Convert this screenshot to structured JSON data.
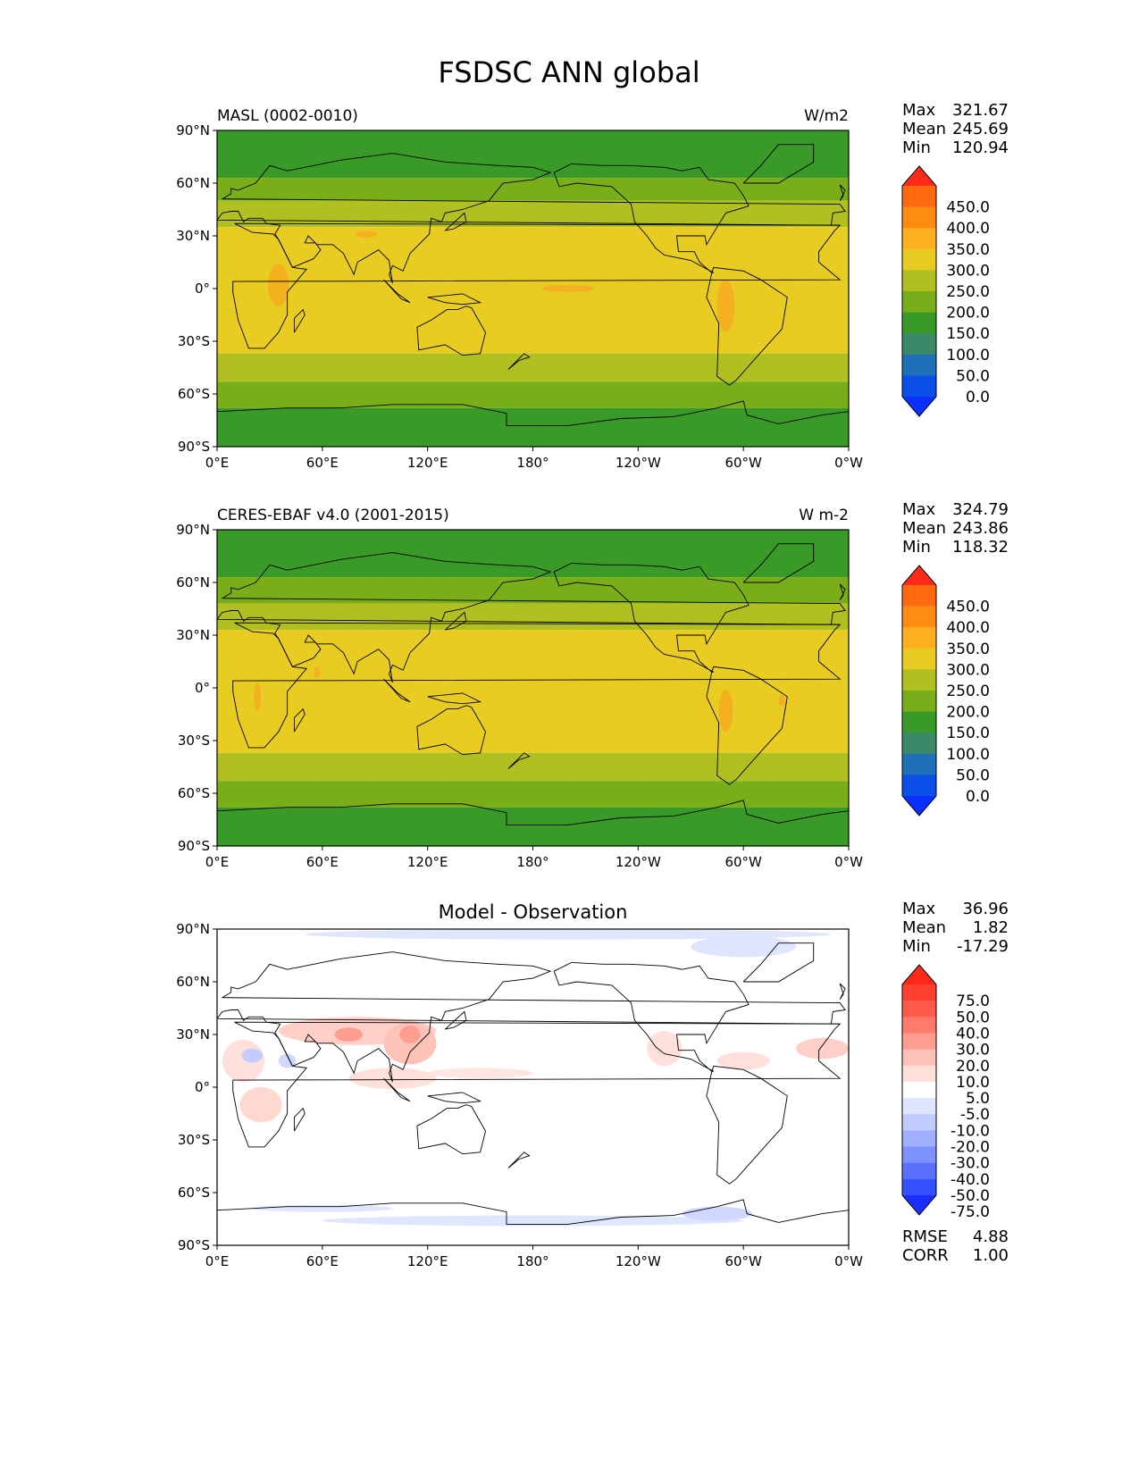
{
  "figure": {
    "title": "FSDSC ANN global",
    "lat_ticks": [
      "90°N",
      "60°N",
      "30°N",
      "0°",
      "30°S",
      "60°S",
      "90°S"
    ],
    "lon_ticks": [
      "0°E",
      "60°E",
      "120°E",
      "180°",
      "120°W",
      "60°W",
      "0°W"
    ]
  },
  "panels": [
    {
      "id": "model",
      "left_title": "MASL (0002-0010)",
      "center_title": "",
      "right_title": "W/m2",
      "stats": [
        {
          "label": "Max",
          "value": "321.67"
        },
        {
          "label": "Mean",
          "value": "245.69"
        },
        {
          "label": "Min",
          "value": "120.94"
        }
      ],
      "colorbar": {
        "labels": [
          "450.0",
          "400.0",
          "350.0",
          "300.0",
          "250.0",
          "200.0",
          "150.0",
          "100.0",
          "50.0",
          "0.0"
        ],
        "colors": [
          "#ff2a1a",
          "#ff6a10",
          "#ff8c10",
          "#ffb020",
          "#e8cc22",
          "#b0c020",
          "#7aae18",
          "#3a9a28",
          "#3a8a6a",
          "#1e70b8",
          "#0a50e8",
          "#0a30ff"
        ]
      },
      "field": {
        "bands": [
          {
            "lat_top": 90,
            "lat_bottom": 63,
            "color": "#3a9a28"
          },
          {
            "lat_top": 63,
            "lat_bottom": 50,
            "color": "#7aae18"
          },
          {
            "lat_top": 50,
            "lat_bottom": 35,
            "color": "#b0c020"
          },
          {
            "lat_top": 35,
            "lat_bottom": -37,
            "color": "#e8cc22"
          },
          {
            "lat_top": -37,
            "lat_bottom": -53,
            "color": "#b0c020"
          },
          {
            "lat_top": -53,
            "lat_bottom": -68,
            "color": "#7aae18"
          },
          {
            "lat_top": -68,
            "lat_bottom": -90,
            "color": "#3a9a28"
          }
        ],
        "patches": [
          {
            "lon": 35,
            "lat": 2,
            "rlon": 6,
            "rlat": 12,
            "color": "#f5b020"
          },
          {
            "lon": 200,
            "lat": 0,
            "rlon": 15,
            "rlat": 2,
            "color": "#f5b020"
          },
          {
            "lon": 290,
            "lat": -10,
            "rlon": 5,
            "rlat": 15,
            "color": "#f5b020"
          },
          {
            "lon": 85,
            "lat": 31,
            "rlon": 6,
            "rlat": 2,
            "color": "#f5b020"
          }
        ]
      }
    },
    {
      "id": "obs",
      "left_title": "CERES-EBAF v4.0 (2001-2015)",
      "center_title": "",
      "right_title": "W m-2",
      "stats": [
        {
          "label": "Max",
          "value": "324.79"
        },
        {
          "label": "Mean",
          "value": "243.86"
        },
        {
          "label": "Min",
          "value": "118.32"
        }
      ],
      "colorbar": {
        "labels": [
          "450.0",
          "400.0",
          "350.0",
          "300.0",
          "250.0",
          "200.0",
          "150.0",
          "100.0",
          "50.0",
          "0.0"
        ],
        "colors": [
          "#ff2a1a",
          "#ff6a10",
          "#ff8c10",
          "#ffb020",
          "#e8cc22",
          "#b0c020",
          "#7aae18",
          "#3a9a28",
          "#3a8a6a",
          "#1e70b8",
          "#0a50e8",
          "#0a30ff"
        ]
      },
      "field": {
        "bands": [
          {
            "lat_top": 90,
            "lat_bottom": 63,
            "color": "#3a9a28"
          },
          {
            "lat_top": 63,
            "lat_bottom": 48,
            "color": "#7aae18"
          },
          {
            "lat_top": 48,
            "lat_bottom": 33,
            "color": "#b0c020"
          },
          {
            "lat_top": 33,
            "lat_bottom": -37,
            "color": "#e8cc22"
          },
          {
            "lat_top": -37,
            "lat_bottom": -53,
            "color": "#b0c020"
          },
          {
            "lat_top": -53,
            "lat_bottom": -68,
            "color": "#7aae18"
          },
          {
            "lat_top": -68,
            "lat_bottom": -90,
            "color": "#3a9a28"
          }
        ],
        "patches": [
          {
            "lon": 23,
            "lat": -5,
            "rlon": 2,
            "rlat": 8,
            "color": "#f5b020"
          },
          {
            "lon": 290,
            "lat": -13,
            "rlon": 4,
            "rlat": 12,
            "color": "#f5b020"
          },
          {
            "lon": 322,
            "lat": -7,
            "rlon": 2,
            "rlat": 3,
            "color": "#f5b020"
          },
          {
            "lon": 57,
            "lat": 9,
            "rlon": 2,
            "rlat": 3,
            "color": "#f5b020"
          }
        ]
      }
    },
    {
      "id": "diff",
      "left_title": "",
      "center_title": "Model - Observation",
      "right_title": "",
      "stats": [
        {
          "label": "Max",
          "value": "36.96"
        },
        {
          "label": "Mean",
          "value": "1.82"
        },
        {
          "label": "Min",
          "value": "-17.29"
        }
      ],
      "colorbar": {
        "labels": [
          "75.0",
          "50.0",
          "40.0",
          "30.0",
          "20.0",
          "10.0",
          "5.0",
          "-5.0",
          "-10.0",
          "-20.0",
          "-30.0",
          "-40.0",
          "-50.0",
          "-75.0"
        ],
        "colors": [
          "#ff2a1a",
          "#ff4030",
          "#ff5a4a",
          "#ff7a6a",
          "#ff9e90",
          "#ffc2b8",
          "#ffe0da",
          "#ffffff",
          "#e0e6ff",
          "#c2ccff",
          "#a0b0ff",
          "#7e92ff",
          "#5a70ff",
          "#3450ff",
          "#1a30ff"
        ]
      },
      "field": {
        "bands": [
          {
            "lat_top": 90,
            "lat_bottom": -90,
            "color": "#ffffff"
          }
        ],
        "patches": [
          {
            "lon": 80,
            "lat": 32,
            "rlon": 45,
            "rlat": 8,
            "color": "#ffd0c8"
          },
          {
            "lon": 110,
            "lat": 25,
            "rlon": 15,
            "rlat": 12,
            "color": "#ffc2b8"
          },
          {
            "lon": 75,
            "lat": 30,
            "rlon": 8,
            "rlat": 4,
            "color": "#ff9e90"
          },
          {
            "lon": 110,
            "lat": 30,
            "rlon": 6,
            "rlat": 5,
            "color": "#ff9e90"
          },
          {
            "lon": 15,
            "lat": 15,
            "rlon": 12,
            "rlat": 12,
            "color": "#ffe0da"
          },
          {
            "lon": 25,
            "lat": -10,
            "rlon": 12,
            "rlat": 10,
            "color": "#ffd8d0"
          },
          {
            "lon": 100,
            "lat": 5,
            "rlon": 25,
            "rlat": 6,
            "color": "#ffe0da"
          },
          {
            "lon": 150,
            "lat": 8,
            "rlon": 30,
            "rlat": 3,
            "color": "#ffe6e0"
          },
          {
            "lon": 255,
            "lat": 22,
            "rlon": 10,
            "rlat": 10,
            "color": "#ffe0da"
          },
          {
            "lon": 300,
            "lat": 15,
            "rlon": 15,
            "rlat": 5,
            "color": "#ffe0da"
          },
          {
            "lon": 345,
            "lat": 22,
            "rlon": 15,
            "rlat": 6,
            "color": "#ffd0c8"
          },
          {
            "lon": 20,
            "lat": 18,
            "rlon": 6,
            "rlat": 4,
            "color": "#c2ccff"
          },
          {
            "lon": 40,
            "lat": 15,
            "rlon": 5,
            "rlat": 4,
            "color": "#d0d8ff"
          },
          {
            "lon": 200,
            "lat": 87,
            "rlon": 150,
            "rlat": 3,
            "color": "#e0e6ff"
          },
          {
            "lon": 300,
            "lat": 80,
            "rlon": 30,
            "rlat": 6,
            "color": "#dfe5ff"
          },
          {
            "lon": 180,
            "lat": -76,
            "rlon": 120,
            "rlat": 3,
            "color": "#e0e6ff"
          },
          {
            "lon": 60,
            "lat": -69,
            "rlon": 40,
            "rlat": 2,
            "color": "#e0e6ff"
          },
          {
            "lon": 285,
            "lat": -72,
            "rlon": 20,
            "rlat": 4,
            "color": "#d0d8ff"
          }
        ]
      },
      "metrics": [
        {
          "label": "RMSE",
          "value": "4.88"
        },
        {
          "label": "CORR",
          "value": "1.00"
        }
      ]
    }
  ]
}
